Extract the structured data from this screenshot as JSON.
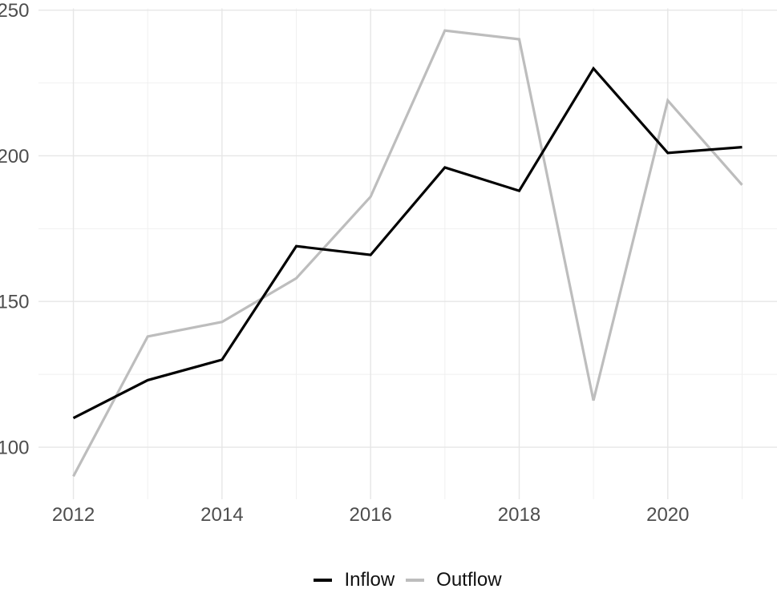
{
  "chart_data": {
    "type": "line",
    "title": "",
    "xlabel": "",
    "ylabel": "",
    "x": [
      2012,
      2013,
      2014,
      2015,
      2016,
      2017,
      2018,
      2019,
      2020,
      2021
    ],
    "series": [
      {
        "name": "Inflow",
        "color": "#000000",
        "values": [
          110,
          123,
          130,
          169,
          166,
          196,
          188,
          230,
          201,
          203
        ]
      },
      {
        "name": "Outflow",
        "color": "#bdbdbd",
        "values": [
          90,
          138,
          143,
          158,
          186,
          243,
          240,
          116,
          219,
          190
        ]
      }
    ],
    "x_ticks": [
      2012,
      2014,
      2016,
      2018,
      2020
    ],
    "x_minor_ticks": [
      2013,
      2015,
      2017,
      2019,
      2021
    ],
    "y_ticks": [
      100,
      150,
      200,
      250
    ],
    "y_minor_ticks": [
      125,
      175,
      225
    ],
    "xlim": [
      2011.53,
      2021.47
    ],
    "ylim": [
      82.4,
      250.6
    ],
    "grid": "major+minor",
    "legend_position": "bottom-center",
    "colors": {
      "background": "#ffffff",
      "grid_major": "#e6e6e6",
      "grid_minor": "#efefef",
      "tick_label": "#4d4d4d",
      "legend_label": "#111111"
    }
  }
}
